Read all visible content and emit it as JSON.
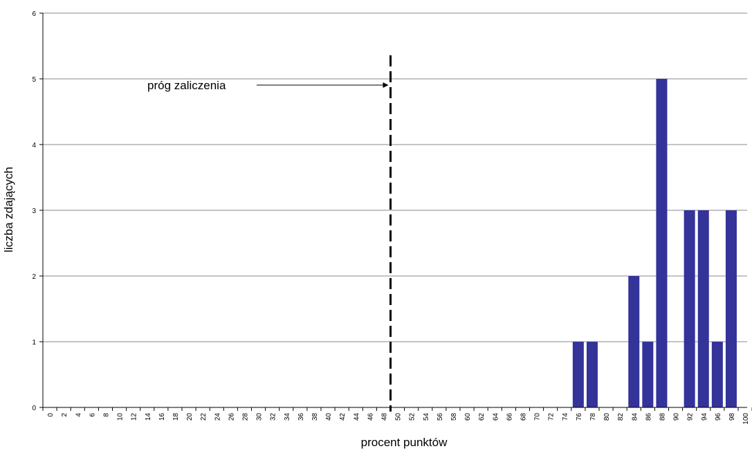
{
  "chart_data": {
    "type": "bar",
    "title": "",
    "xlabel": "procent punktów",
    "ylabel": "liczba zdających",
    "ylim": [
      0,
      6
    ],
    "yticks": [
      0,
      1,
      2,
      3,
      4,
      5,
      6
    ],
    "grid": true,
    "categories": [
      "0",
      "2",
      "4",
      "6",
      "8",
      "10",
      "12",
      "14",
      "16",
      "18",
      "20",
      "22",
      "24",
      "26",
      "28",
      "30",
      "32",
      "34",
      "36",
      "38",
      "40",
      "42",
      "44",
      "46",
      "48",
      "50",
      "52",
      "54",
      "56",
      "58",
      "60",
      "62",
      "64",
      "66",
      "68",
      "70",
      "72",
      "74",
      "76",
      "78",
      "80",
      "82",
      "84",
      "86",
      "88",
      "90",
      "92",
      "94",
      "96",
      "98",
      "100"
    ],
    "values": [
      0,
      0,
      0,
      0,
      0,
      0,
      0,
      0,
      0,
      0,
      0,
      0,
      0,
      0,
      0,
      0,
      0,
      0,
      0,
      0,
      0,
      0,
      0,
      0,
      0,
      0,
      0,
      0,
      0,
      0,
      0,
      0,
      0,
      0,
      0,
      0,
      0,
      0,
      1,
      1,
      0,
      0,
      2,
      1,
      5,
      0,
      3,
      3,
      1,
      3,
      0
    ],
    "bar_color": "#333399",
    "threshold": {
      "label": "próg zaliczenia",
      "x": 49
    }
  }
}
